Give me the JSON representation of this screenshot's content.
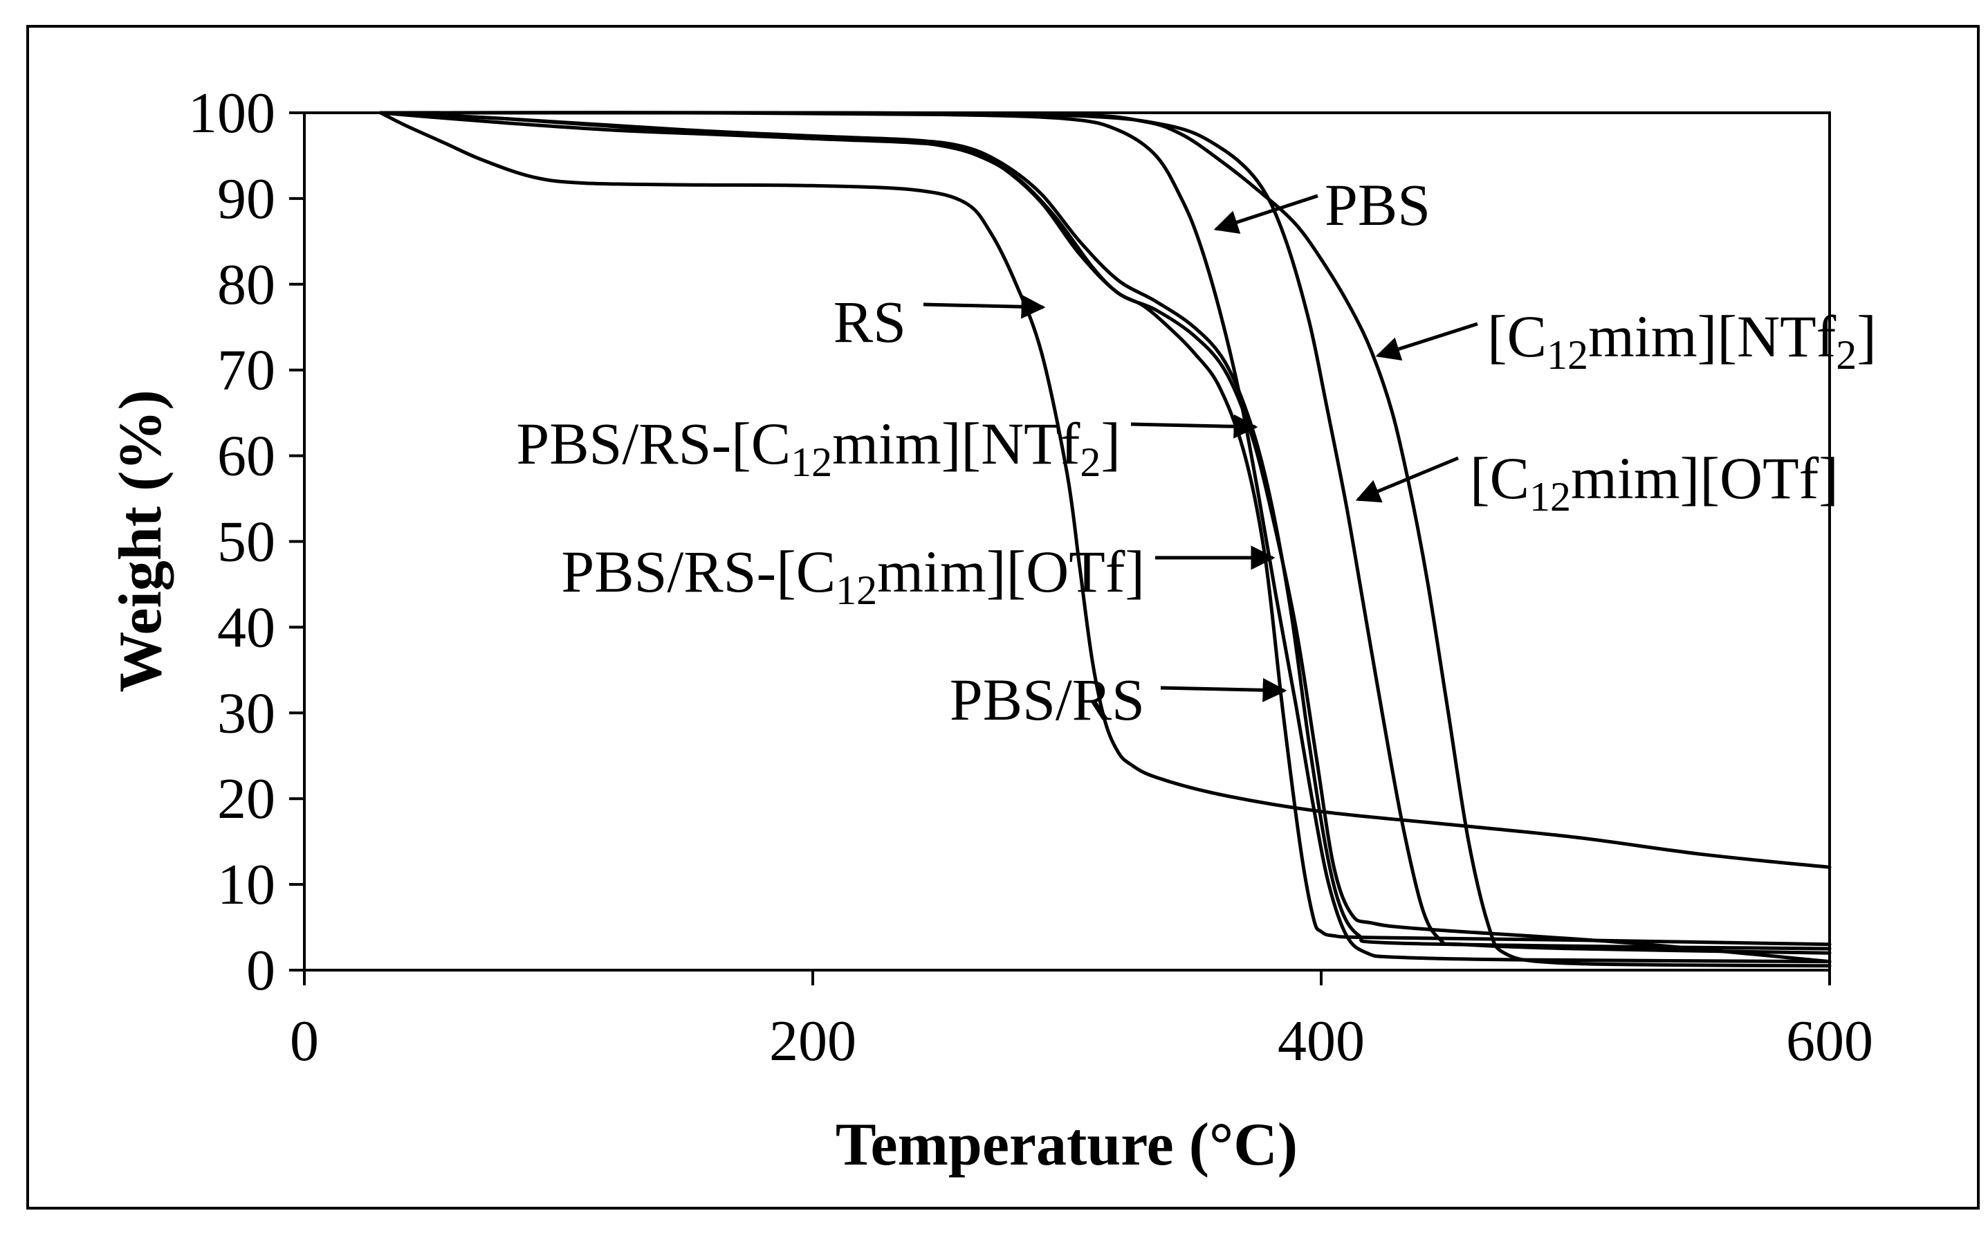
{
  "chart_data": {
    "type": "line",
    "xlabel": "Temperature (°C)",
    "ylabel": "Weight (%)",
    "xlim": [
      0,
      600
    ],
    "ylim": [
      0,
      100
    ],
    "xticks": [
      0,
      200,
      400,
      600
    ],
    "yticks": [
      0,
      10,
      20,
      30,
      40,
      50,
      60,
      70,
      80,
      90,
      100
    ],
    "grid": false,
    "legend": "none",
    "series": [
      {
        "name": "RS",
        "x": [
          30,
          40,
          55,
          70,
          90,
          110,
          150,
          200,
          240,
          260,
          270,
          280,
          290,
          300,
          305,
          310,
          315,
          320,
          325,
          335,
          360,
          400,
          450,
          500,
          550,
          600
        ],
        "y": [
          100,
          98.5,
          96.5,
          94.5,
          92.5,
          91.8,
          91.6,
          91.5,
          91,
          89.5,
          86,
          80,
          72,
          58,
          47,
          36,
          29,
          25.5,
          24,
          22.5,
          20.5,
          18.5,
          17,
          15.5,
          13.5,
          12
        ]
      },
      {
        "name": "PBS/RS",
        "x": [
          30,
          50,
          80,
          120,
          160,
          200,
          230,
          250,
          265,
          280,
          295,
          310,
          320,
          330,
          340,
          350,
          360,
          370,
          378,
          385,
          392,
          397,
          400,
          405,
          420,
          500,
          600
        ],
        "y": [
          100,
          99.5,
          98.8,
          98,
          97.5,
          97,
          96.8,
          96.2,
          95,
          92.5,
          88,
          82,
          79,
          77.5,
          75,
          72,
          68,
          60,
          48,
          30,
          14,
          6,
          4.5,
          4,
          3.8,
          3.5,
          3
        ]
      },
      {
        "name": "PBS/RS-[C12mim][OTf]",
        "x": [
          30,
          80,
          150,
          200,
          240,
          260,
          275,
          290,
          305,
          320,
          335,
          350,
          362,
          372,
          380,
          388,
          395,
          402,
          408,
          415,
          425,
          500,
          600
        ],
        "y": [
          100,
          99.3,
          98,
          97.3,
          96.8,
          96,
          94,
          90.5,
          85,
          80.5,
          78,
          75,
          71,
          64,
          55,
          42,
          27,
          14,
          7,
          4,
          3.2,
          2.8,
          2.5
        ]
      },
      {
        "name": "PBS/RS-[C12mim][NTf2]",
        "x": [
          30,
          80,
          150,
          200,
          240,
          260,
          275,
          290,
          305,
          320,
          335,
          350,
          362,
          372,
          380,
          390,
          398,
          405,
          412,
          420,
          440,
          520,
          600
        ],
        "y": [
          100,
          99.3,
          97.8,
          97,
          96.5,
          95.8,
          93.5,
          89.5,
          83.5,
          79,
          77,
          74,
          70,
          63,
          54,
          40,
          25,
          12,
          6.5,
          5.5,
          4.8,
          3.2,
          1
        ]
      },
      {
        "name": "PBS",
        "x": [
          30,
          150,
          250,
          300,
          320,
          335,
          345,
          352,
          360,
          368,
          375,
          382,
          390,
          397,
          403,
          410,
          418,
          430,
          480,
          600
        ],
        "y": [
          100,
          100,
          99.8,
          99.3,
          98,
          95,
          90,
          85,
          77,
          67,
          56,
          44,
          31,
          19,
          10,
          4,
          2,
          1.5,
          1.2,
          1
        ]
      },
      {
        "name": "[C12mim][OTf]",
        "x": [
          30,
          200,
          300,
          340,
          360,
          375,
          385,
          395,
          402,
          410,
          417,
          424,
          432,
          440,
          447,
          455,
          500,
          600
        ],
        "y": [
          100,
          100,
          99.7,
          98.5,
          96,
          92,
          86,
          76,
          66,
          54,
          42,
          30,
          17,
          7,
          3.5,
          3,
          2.5,
          2
        ]
      },
      {
        "name": "[C12mim][NTf2]",
        "x": [
          30,
          200,
          300,
          330,
          345,
          360,
          375,
          390,
          402,
          412,
          420,
          428,
          435,
          442,
          450,
          458,
          466,
          472,
          490,
          540,
          600
        ],
        "y": [
          100,
          100,
          99.8,
          99,
          97.5,
          94.5,
          91,
          87,
          82,
          77,
          72,
          65,
          56,
          45,
          30,
          15,
          5,
          2,
          0.9,
          0.6,
          0.5
        ]
      }
    ],
    "annotations": [
      {
        "name": "pbs",
        "text": "PBS",
        "sub": "",
        "text2": "",
        "x": 360,
        "y": 87.5
      },
      {
        "name": "c12mim-ntf2",
        "text": "[C",
        "sub": "12",
        "text2": "mim][NTf",
        "sub2": "2",
        "text3": "]",
        "x": 422,
        "y": 72.5
      },
      {
        "name": "c12mim-otf",
        "text": "[C",
        "sub": "12",
        "text2": "mim][OTf]",
        "x": 413,
        "y": 55.5
      },
      {
        "name": "rs",
        "text": "RS",
        "sub": "",
        "text2": "",
        "x": 291,
        "y": 77.5
      },
      {
        "name": "pbs-rs-ntf2",
        "text": "PBS/RS-[C",
        "sub": "12",
        "text2": "mim][NTf",
        "sub2": "2",
        "text3": "]",
        "x": 375,
        "y": 63.5
      },
      {
        "name": "pbs-rs-otf",
        "text": "PBS/RS-[C",
        "sub": "12",
        "text2": "mim][OTf]",
        "x": 381,
        "y": 47.8
      },
      {
        "name": "pbs-rs",
        "text": "PBS/RS",
        "sub": "",
        "text2": "",
        "x": 385,
        "y": 32.7
      }
    ]
  }
}
